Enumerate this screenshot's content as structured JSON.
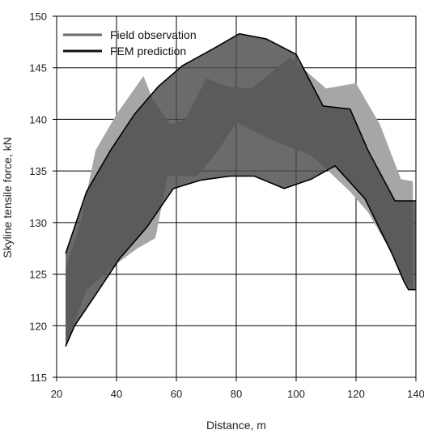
{
  "chart_data": {
    "type": "area",
    "xlabel": "Distance, m",
    "ylabel": "Skyline tensile force, kN",
    "xlim": [
      20,
      140
    ],
    "ylim": [
      115,
      150
    ],
    "xticks": [
      20,
      40,
      60,
      80,
      100,
      120,
      140
    ],
    "yticks": [
      115,
      120,
      125,
      130,
      135,
      140,
      145,
      150
    ],
    "grid": true,
    "legend_position": "top-left",
    "series": [
      {
        "name": "Field observation",
        "color": "#a6a6a6",
        "upper": [
          [
            23,
            125.5
          ],
          [
            28,
            130
          ],
          [
            33,
            137
          ],
          [
            40,
            140.5
          ],
          [
            49,
            144.2
          ],
          [
            52,
            142
          ],
          [
            58,
            139.5
          ],
          [
            63,
            140
          ],
          [
            70,
            144
          ],
          [
            77,
            143.2
          ],
          [
            85,
            143
          ],
          [
            98,
            146
          ],
          [
            110,
            143
          ],
          [
            120,
            143.5
          ],
          [
            128,
            139.5
          ],
          [
            135,
            134.2
          ],
          [
            139,
            134
          ]
        ],
        "lower": [
          [
            23,
            118
          ],
          [
            30,
            123.5
          ],
          [
            40,
            126
          ],
          [
            47,
            127.5
          ],
          [
            53,
            128.5
          ],
          [
            57,
            134.5
          ],
          [
            67,
            134.5
          ],
          [
            74,
            137
          ],
          [
            80,
            139.7
          ],
          [
            92,
            138
          ],
          [
            105,
            136.5
          ],
          [
            110,
            135.2
          ],
          [
            118,
            133
          ],
          [
            124,
            131
          ],
          [
            130,
            128
          ],
          [
            137,
            124
          ],
          [
            139,
            123.5
          ]
        ]
      },
      {
        "name": "FEM prediction",
        "color": "#4a4a4a",
        "upper": [
          [
            23,
            127
          ],
          [
            30,
            133
          ],
          [
            38,
            137
          ],
          [
            46,
            140.5
          ],
          [
            54,
            143.2
          ],
          [
            62,
            145.2
          ],
          [
            72,
            146.8
          ],
          [
            81,
            148.3
          ],
          [
            90,
            147.8
          ],
          [
            100,
            146.3
          ],
          [
            109,
            141.3
          ],
          [
            118,
            141
          ],
          [
            124,
            137
          ],
          [
            133,
            132.1
          ],
          [
            140,
            132.1
          ]
        ],
        "lower": [
          [
            23,
            118
          ],
          [
            26,
            120
          ],
          [
            33,
            123
          ],
          [
            41,
            126.5
          ],
          [
            50,
            129.5
          ],
          [
            59,
            133.3
          ],
          [
            68,
            134.1
          ],
          [
            78,
            134.5
          ],
          [
            86,
            134.5
          ],
          [
            96,
            133.3
          ],
          [
            105,
            134.2
          ],
          [
            113,
            135.5
          ],
          [
            123,
            132.3
          ],
          [
            132,
            127
          ],
          [
            136,
            124.3
          ],
          [
            137.5,
            123.5
          ],
          [
            140,
            123.5
          ]
        ]
      }
    ]
  }
}
